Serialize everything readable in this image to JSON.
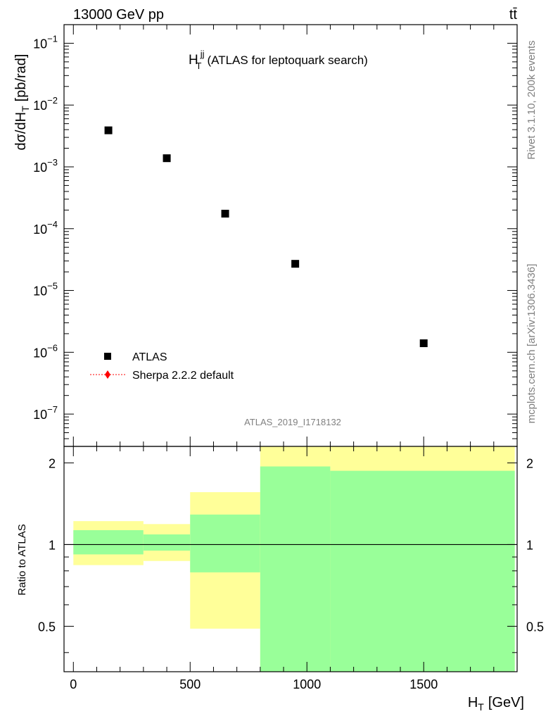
{
  "header": {
    "energy_label": "13000 GeV pp",
    "process_label": "tt̄"
  },
  "side_labels": {
    "rivet": "Rivet 3.1.10,  200k events",
    "mcplots": "mcplots.cern.ch [arXiv:1306.3436]"
  },
  "chart_data": [
    {
      "type": "scatter",
      "title_main": "H",
      "title_sup": "jj",
      "title_sub": "T",
      "title_rest": "(ATLAS for leptoquark search)",
      "ylabel": "dσ/dH",
      "ylabel_sub": "T",
      "ylabel_rest": "[pb/rad]",
      "yscale": "log",
      "ylim": [
        3e-08,
        0.2
      ],
      "xlim": [
        -40,
        1900
      ],
      "y_ticks": [
        {
          "value": 1e-07,
          "base": "10",
          "exp": "−7"
        },
        {
          "value": 1e-06,
          "base": "10",
          "exp": "−6"
        },
        {
          "value": 1e-05,
          "base": "10",
          "exp": "−5"
        },
        {
          "value": 0.0001,
          "base": "10",
          "exp": "−4"
        },
        {
          "value": 0.001,
          "base": "10",
          "exp": "−3"
        },
        {
          "value": 0.01,
          "base": "10",
          "exp": "−2"
        },
        {
          "value": 0.1,
          "base": "10",
          "exp": "−1"
        }
      ],
      "series": [
        {
          "name": "ATLAS",
          "marker": "square",
          "color": "#000000",
          "points": [
            {
              "x": 150,
              "y": 0.0039
            },
            {
              "x": 400,
              "y": 0.00138
            },
            {
              "x": 650,
              "y": 0.000175
            },
            {
              "x": 950,
              "y": 2.7e-05
            },
            {
              "x": 1500,
              "y": 1.4e-06
            }
          ]
        },
        {
          "name": "Sherpa 2.2.2 default",
          "marker": "diamond",
          "color": "#ff0000",
          "points": []
        }
      ],
      "watermark": "ATLAS_2019_I1718132"
    },
    {
      "type": "area",
      "ylabel": "Ratio to ATLAS",
      "xlabel": "H",
      "xlabel_sub": "T",
      "xlabel_rest": "[GeV]",
      "xlim": [
        -40,
        1900
      ],
      "ylim": [
        0.34,
        2.3
      ],
      "x_ticks": [
        0,
        500,
        1000,
        1500
      ],
      "y_ticks": [
        0.5,
        1,
        2
      ],
      "reference_line": 1,
      "bands": [
        {
          "x_low": 0,
          "x_high": 300,
          "stat_low": 0.92,
          "stat_high": 1.13,
          "total_low": 0.84,
          "total_high": 1.22
        },
        {
          "x_low": 300,
          "x_high": 500,
          "stat_low": 0.95,
          "stat_high": 1.09,
          "total_low": 0.87,
          "total_high": 1.19
        },
        {
          "x_low": 500,
          "x_high": 800,
          "stat_low": 0.79,
          "stat_high": 1.29,
          "total_low": 0.49,
          "total_high": 1.56
        },
        {
          "x_low": 800,
          "x_high": 1100,
          "stat_low": 0.34,
          "stat_high": 1.94,
          "total_low": 0.34,
          "total_high": 2.3
        },
        {
          "x_low": 1100,
          "x_high": 1890,
          "stat_low": 0.34,
          "stat_high": 1.87,
          "total_low": 0.34,
          "total_high": 2.3
        }
      ],
      "colors": {
        "stat_band": "#99ff99",
        "total_band": "#ffff99"
      }
    }
  ]
}
